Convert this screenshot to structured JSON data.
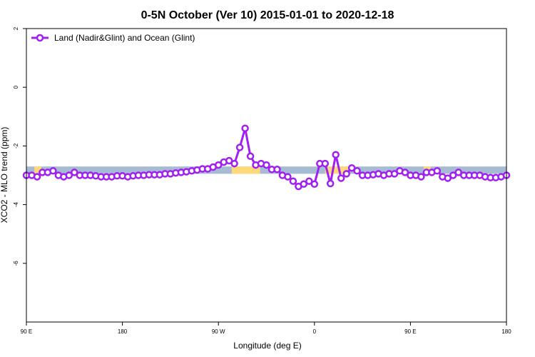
{
  "chart_data": {
    "type": "line",
    "title": "0-5N October (Ver 10)   2015-01-01 to 2020-12-18",
    "xlabel": "Longitude (deg E)",
    "ylabel": "XCO2 - MLO trend (ppm)",
    "xlim": [
      0,
      90
    ],
    "ylim": [
      2,
      -8
    ],
    "xticks": [
      {
        "value": 0,
        "label": "90 E"
      },
      {
        "value": 18,
        "label": "180"
      },
      {
        "value": 36,
        "label": "90 W"
      },
      {
        "value": 54,
        "label": "0"
      },
      {
        "value": 72,
        "label": "90 E"
      },
      {
        "value": 90,
        "label": "180"
      }
    ],
    "yticks": [
      {
        "value": 2,
        "label": "2"
      },
      {
        "value": 0,
        "label": "0"
      },
      {
        "value": -2,
        "label": "-2"
      },
      {
        "value": -4,
        "label": "-4"
      },
      {
        "value": -6,
        "label": "-6"
      }
    ],
    "legend": {
      "position": "top-left",
      "entries": [
        "Land (Nadir&Glint) and Ocean (Glint)"
      ]
    },
    "grid": false,
    "colors": {
      "series": "#a020f0",
      "ocean_band": "#a7bcd4",
      "land_band": "#fdd97a"
    },
    "background_band": {
      "y_range": [
        -2.7,
        -2.95
      ],
      "land_segments": [
        [
          1.5,
          2.8
        ],
        [
          38.5,
          43.8
        ],
        [
          56,
          60.5
        ],
        [
          74.5,
          75.8
        ]
      ]
    },
    "series": [
      {
        "name": "Land (Nadir&Glint) and Ocean (Glint)",
        "x": [
          0,
          1,
          2,
          3,
          4,
          5,
          6,
          7,
          8,
          9,
          10,
          11,
          12,
          13,
          14,
          15,
          16,
          17,
          18,
          19,
          20,
          21,
          22,
          23,
          24,
          25,
          26,
          27,
          28,
          29,
          30,
          31,
          32,
          33,
          34,
          35,
          36,
          37,
          38,
          39,
          40,
          41,
          42,
          43,
          44,
          45,
          46,
          47,
          48,
          49,
          50,
          51,
          52,
          53,
          54,
          55,
          56,
          57,
          58,
          59,
          60,
          61,
          62,
          63,
          64,
          65,
          66,
          67,
          68,
          69,
          70,
          71,
          72,
          73,
          74,
          75,
          76,
          77,
          78,
          79,
          80,
          81,
          82,
          83,
          84,
          85,
          86,
          87,
          88,
          89,
          90
        ],
        "y": [
          -3.0,
          -3.0,
          -3.05,
          -2.9,
          -2.9,
          -2.85,
          -3.0,
          -3.05,
          -3.0,
          -2.9,
          -3.0,
          -3.0,
          -3.0,
          -3.02,
          -3.05,
          -3.05,
          -3.05,
          -3.02,
          -3.02,
          -3.05,
          -3.02,
          -3.0,
          -3.0,
          -2.98,
          -2.98,
          -2.98,
          -2.95,
          -2.95,
          -2.92,
          -2.9,
          -2.88,
          -2.85,
          -2.82,
          -2.78,
          -2.78,
          -2.72,
          -2.65,
          -2.55,
          -2.5,
          -2.6,
          -2.05,
          -1.4,
          -2.35,
          -2.65,
          -2.6,
          -2.65,
          -2.8,
          -2.8,
          -3.0,
          -3.05,
          -3.2,
          -3.38,
          -3.3,
          -3.2,
          -3.3,
          -2.6,
          -2.6,
          -3.28,
          -2.3,
          -3.1,
          -2.95,
          -2.75,
          -2.85,
          -3.0,
          -3.0,
          -2.98,
          -2.95,
          -3.0,
          -2.95,
          -2.95,
          -2.85,
          -2.9,
          -3.0,
          -3.0,
          -3.05,
          -2.9,
          -2.9,
          -2.85,
          -3.05,
          -3.1,
          -3.0,
          -2.9,
          -3.0,
          -3.0,
          -3.0,
          -3.0,
          -3.05,
          -3.08,
          -3.08,
          -3.05,
          -3.0
        ]
      }
    ]
  }
}
